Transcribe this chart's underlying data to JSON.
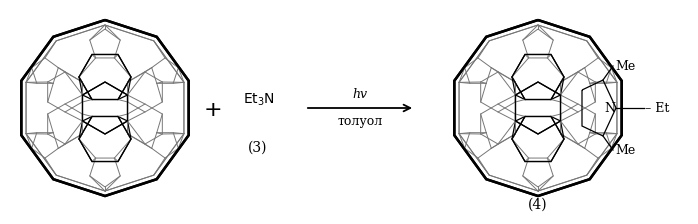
{
  "bg_color": "#ffffff",
  "line_color": "#000000",
  "gray_color": "#777777",
  "plus_text": "+",
  "condition1": "hv",
  "condition2": "толуол",
  "label3": "(3)",
  "label4": "(4)",
  "me_top": "Me",
  "me_bottom": "Me",
  "n_label": "N",
  "et_label": "– Et",
  "fig_width": 6.98,
  "fig_height": 2.24,
  "dpi": 100,
  "lw_outer": 1.8,
  "lw_inner": 0.9,
  "lw_gray": 0.7
}
